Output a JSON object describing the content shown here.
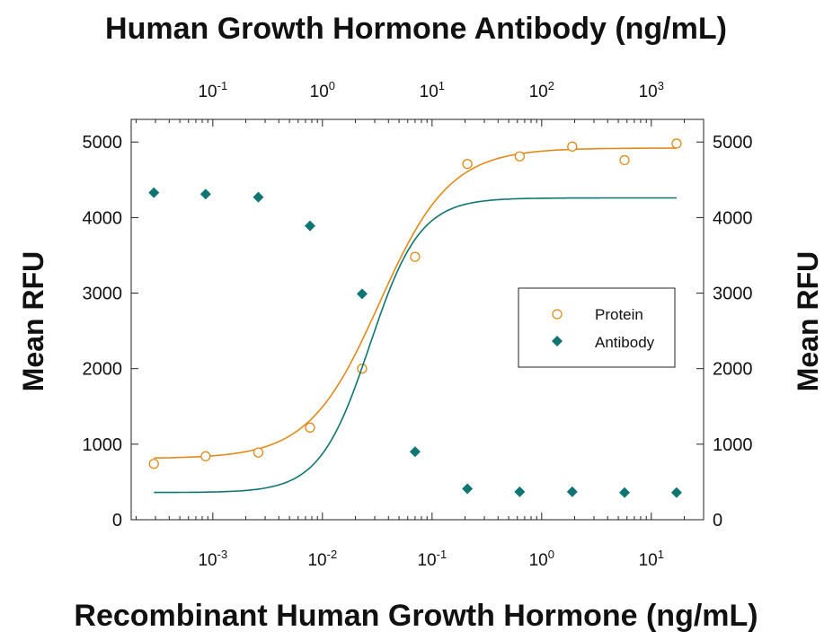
{
  "chart_data": {
    "type": "line",
    "title_top": "Human Growth Hormone Antibody (ng/mL)",
    "xlabel": "Recombinant Human Growth Hormone (ng/mL)",
    "ylabel_left": "Mean RFU",
    "ylabel_right": "Mean RFU",
    "x_scale": "log",
    "x_bottom_lim": [
      0.00018,
      30
    ],
    "x_bottom_ticks": [
      {
        "value": 0.001,
        "base": "10",
        "exp": "-3"
      },
      {
        "value": 0.01,
        "base": "10",
        "exp": "-2"
      },
      {
        "value": 0.1,
        "base": "10",
        "exp": "-1"
      },
      {
        "value": 1,
        "base": "10",
        "exp": "0"
      },
      {
        "value": 10,
        "base": "10",
        "exp": "1"
      }
    ],
    "x_top_lim": [
      0.018,
      3000
    ],
    "x_top_ticks": [
      {
        "value": 0.1,
        "base": "10",
        "exp": "-1"
      },
      {
        "value": 1,
        "base": "10",
        "exp": "0"
      },
      {
        "value": 10,
        "base": "10",
        "exp": "1"
      },
      {
        "value": 100,
        "base": "10",
        "exp": "2"
      },
      {
        "value": 1000,
        "base": "10",
        "exp": "3"
      }
    ],
    "ylim": [
      0,
      5300
    ],
    "y_ticks": [
      "0",
      "1000",
      "2000",
      "3000",
      "4000",
      "5000"
    ],
    "legend_position": "right",
    "series": [
      {
        "name": "Protein",
        "axis": "bottom",
        "color": "#E08A1A",
        "marker": "open-circle",
        "x": [
          0.00029,
          0.00086,
          0.0026,
          0.0077,
          0.023,
          0.07,
          0.21,
          0.63,
          1.9,
          5.7,
          17
        ],
        "values": [
          740,
          840,
          890,
          1220,
          2000,
          3480,
          4710,
          4810,
          4940,
          4760,
          4980
        ],
        "fit": {
          "bottom": 810,
          "top": 4920,
          "ec50": 0.033,
          "hill": 1.35
        }
      },
      {
        "name": "Antibody",
        "axis": "top",
        "color": "#0F7573",
        "marker": "filled-diamond",
        "x": [
          0.029,
          0.086,
          0.26,
          0.77,
          2.3,
          7,
          21,
          63,
          190,
          570,
          1700
        ],
        "values": [
          4330,
          4310,
          4270,
          3890,
          2990,
          900,
          410,
          370,
          370,
          360,
          360
        ],
        "fit": {
          "bottom": 360,
          "top": 4260,
          "ec50": 2.7,
          "hill": 1.9
        }
      }
    ]
  }
}
